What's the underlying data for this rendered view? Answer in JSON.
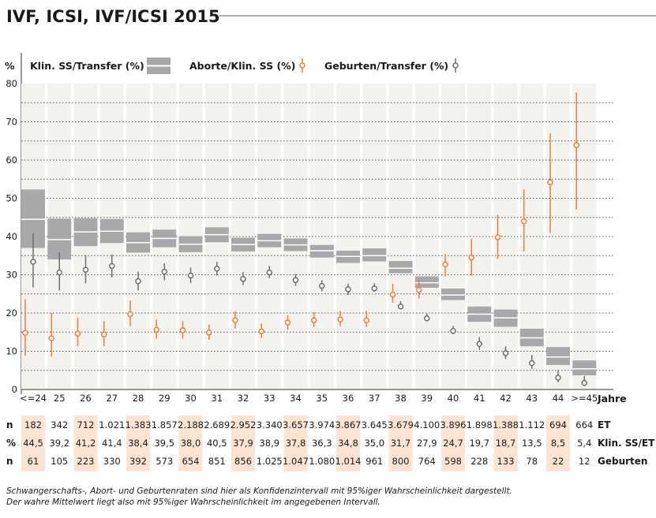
{
  "title": "IVF, ICSI, IVF/ICSI 2015",
  "colors": {
    "pregnancy_box": "#a7a8aa",
    "abortion": "#e8803a",
    "birth": "#6d6e70",
    "column_bg": "#f3f2ee",
    "highlight": "#fde4d2"
  },
  "chart_data": {
    "type": "interval",
    "ylabel": "%",
    "xlabel": "Jahre",
    "ylim": [
      0,
      80
    ],
    "yticks": [
      "0",
      "10",
      "20",
      "30",
      "40",
      "50",
      "60",
      "70",
      "80"
    ],
    "grid": "dotted horizontal every 5",
    "legend_placement": "top",
    "categories": [
      "<=24",
      "25",
      "26",
      "27",
      "28",
      "29",
      "30",
      "31",
      "32",
      "33",
      "34",
      "35",
      "36",
      "37",
      "38",
      "39",
      "40",
      "41",
      "42",
      "43",
      "44",
      ">=45"
    ],
    "series": [
      {
        "name": "Klin. SS/Transfer (%)",
        "kind": "box",
        "mean": [
          44.5,
          39.2,
          41.2,
          41.4,
          38.4,
          39.5,
          38.0,
          40.5,
          37.9,
          38.9,
          37.8,
          36.3,
          34.8,
          35.0,
          31.7,
          27.9,
          24.7,
          19.7,
          18.7,
          13.5,
          8.5,
          5.4
        ],
        "lower": [
          37.0,
          34.0,
          37.5,
          38.3,
          35.8,
          37.2,
          35.9,
          38.5,
          36.1,
          37.2,
          36.2,
          34.5,
          33.1,
          33.5,
          30.4,
          26.6,
          23.4,
          17.7,
          16.4,
          11.3,
          6.4,
          3.7
        ],
        "upper": [
          52.3,
          44.7,
          44.8,
          44.6,
          41.1,
          41.8,
          40.1,
          42.4,
          39.7,
          40.7,
          39.5,
          37.8,
          36.3,
          36.9,
          33.6,
          29.6,
          26.4,
          21.7,
          20.9,
          15.9,
          11.1,
          7.6
        ]
      },
      {
        "name": "Aborte/Klin. SS (%)",
        "kind": "errorbar",
        "value": [
          14.8,
          13.4,
          14.6,
          14.4,
          19.7,
          15.6,
          15.5,
          14.9,
          18.1,
          15.2,
          17.5,
          18.1,
          18.3,
          18.1,
          24.8,
          26.0,
          32.7,
          34.5,
          39.8,
          44.0,
          54.2,
          63.9
        ],
        "lower": [
          8.8,
          8.6,
          11.3,
          11.3,
          16.6,
          13.3,
          13.3,
          13.0,
          16.0,
          13.5,
          15.6,
          16.4,
          16.6,
          16.4,
          22.7,
          23.8,
          29.6,
          29.8,
          34.1,
          36.1,
          40.9,
          47.1
        ],
        "upper": [
          23.6,
          20.0,
          18.8,
          17.9,
          23.3,
          18.3,
          17.9,
          17.0,
          20.4,
          17.2,
          19.4,
          20.2,
          20.5,
          20.5,
          27.6,
          28.8,
          35.4,
          39.4,
          45.7,
          52.3,
          67.0,
          77.7
        ]
      },
      {
        "name": "Geburten/Transfer (%)",
        "kind": "errorbar",
        "value": [
          33.4,
          30.6,
          31.3,
          32.3,
          28.3,
          30.8,
          29.8,
          31.6,
          28.9,
          30.6,
          28.6,
          27.1,
          26.2,
          26.4,
          21.7,
          18.6,
          15.3,
          11.9,
          9.5,
          6.9,
          3.1,
          1.7
        ],
        "lower": [
          26.7,
          25.9,
          27.8,
          29.3,
          25.9,
          28.6,
          27.8,
          29.8,
          27.3,
          29.1,
          27.1,
          25.7,
          24.7,
          25.6,
          21.2,
          18.1,
          14.8,
          10.4,
          8.0,
          5.4,
          1.9,
          0.9
        ],
        "upper": [
          40.9,
          35.9,
          35.0,
          35.3,
          30.8,
          33.0,
          31.9,
          33.4,
          30.7,
          32.3,
          30.2,
          28.6,
          27.7,
          27.8,
          23.1,
          19.8,
          16.6,
          13.7,
          11.3,
          9.0,
          5.0,
          3.5
        ]
      }
    ]
  },
  "table": {
    "rows": [
      {
        "left": "n",
        "right": "ET",
        "values": [
          "182",
          "342",
          "712",
          "1.021",
          "1.383",
          "1.857",
          "2.188",
          "2.689",
          "2.952",
          "3.340",
          "3.657",
          "3.974",
          "3.867",
          "3.645",
          "3.679",
          "4.100",
          "3.896",
          "1.898",
          "1.388",
          "1.112",
          "694",
          "664"
        ]
      },
      {
        "left": "%",
        "right": "Klin. SS/ET",
        "values": [
          "44,5",
          "39,2",
          "41,2",
          "41,4",
          "38,4",
          "39,5",
          "38,0",
          "40,5",
          "37,9",
          "38,9",
          "37,8",
          "36,3",
          "34,8",
          "35,0",
          "31,7",
          "27,9",
          "24,7",
          "19,7",
          "18,7",
          "13,5",
          "8,5",
          "5,4"
        ]
      },
      {
        "left": "n",
        "right": "Geburten",
        "values": [
          "61",
          "105",
          "223",
          "330",
          "392",
          "573",
          "654",
          "851",
          "856",
          "1.025",
          "1.047",
          "1.080",
          "1.014",
          "961",
          "800",
          "764",
          "598",
          "228",
          "133",
          "78",
          "22",
          "12"
        ]
      }
    ]
  },
  "footnote": [
    "Schwangerschafts-, Abort- und Geburtenraten sind hier als Konfidenzintervall mit 95%iger Wahrscheinlichkeit dargestellt.",
    "Der wahre Mittelwert liegt also mit 95%iger Wahrscheinlichkeit im angegebenen Intervall."
  ]
}
